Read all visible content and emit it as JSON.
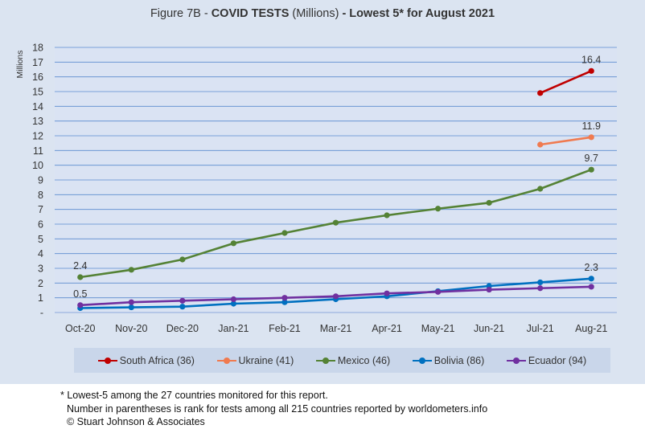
{
  "title": {
    "prefix": "Figure 7B - ",
    "bold1": "COVID TESTS",
    "middle": " (Millions) ",
    "bold2": "- Lowest 5* for August 2021"
  },
  "footnotes": [
    "* Lowest-5 among the 27 countries monitored for this report.",
    "Number in parentheses is rank for tests among all 215 countries reported by worldometers.info",
    "© Stuart Johnson & Associates"
  ],
  "chart_data": {
    "type": "line",
    "ylabel": "Millions",
    "ylim": [
      0,
      18
    ],
    "grid": true,
    "legend_position": "bottom",
    "y_tick_labels": [
      "-",
      "1",
      "2",
      "3",
      "4",
      "5",
      "6",
      "7",
      "8",
      "9",
      "10",
      "11",
      "12",
      "13",
      "14",
      "15",
      "16",
      "17",
      "18"
    ],
    "categories": [
      "Oct-20",
      "Nov-20",
      "Dec-20",
      "Jan-21",
      "Feb-21",
      "Mar-21",
      "Apr-21",
      "May-21",
      "Jun-21",
      "Jul-21",
      "Aug-21"
    ],
    "series": [
      {
        "name": "South Africa (36)",
        "color": "#c00000",
        "values": [
          null,
          null,
          null,
          null,
          null,
          null,
          null,
          null,
          null,
          14.9,
          16.4
        ]
      },
      {
        "name": "Ukraine (41)",
        "color": "#f07a4f",
        "values": [
          null,
          null,
          null,
          null,
          null,
          null,
          null,
          null,
          null,
          11.4,
          11.9
        ]
      },
      {
        "name": "Mexico (46)",
        "color": "#548235",
        "values": [
          2.4,
          2.9,
          3.6,
          4.7,
          5.4,
          6.1,
          6.6,
          7.05,
          7.45,
          8.4,
          9.7
        ]
      },
      {
        "name": "Bolivia (86)",
        "color": "#0070c0",
        "values": [
          0.3,
          0.35,
          0.4,
          0.6,
          0.7,
          0.9,
          1.1,
          1.45,
          1.8,
          2.05,
          2.3
        ]
      },
      {
        "name": "Ecuador (94)",
        "color": "#7030a0",
        "values": [
          0.5,
          0.7,
          0.8,
          0.9,
          1.0,
          1.1,
          1.3,
          1.4,
          1.55,
          1.65,
          1.75
        ]
      }
    ],
    "data_labels": [
      {
        "series": "South Africa (36)",
        "category": "Aug-21",
        "text": "16.4",
        "side": "above"
      },
      {
        "series": "Ukraine (41)",
        "category": "Aug-21",
        "text": "11.9",
        "side": "above"
      },
      {
        "series": "Mexico (46)",
        "category": "Aug-21",
        "text": "9.7",
        "side": "above"
      },
      {
        "series": "Bolivia (86)",
        "category": "Aug-21",
        "text": "2.3",
        "side": "above"
      },
      {
        "series": "Mexico (46)",
        "category": "Oct-20",
        "text": "2.4",
        "side": "above"
      },
      {
        "series": "Ecuador (94)",
        "category": "Oct-20",
        "text": "0.5",
        "side": "above"
      }
    ]
  }
}
